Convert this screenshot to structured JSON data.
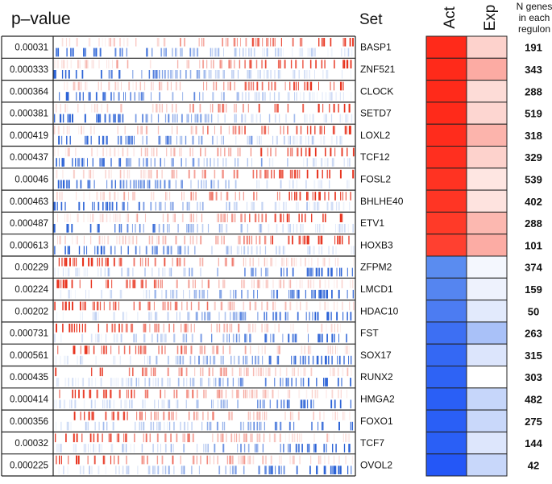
{
  "chart_data": {
    "type": "heatmap",
    "headers": {
      "pvalue": "p–value",
      "set": "Set",
      "act": "Act",
      "exp": "Exp",
      "ngenes": [
        "N genes",
        "in each",
        "regulon"
      ]
    },
    "rows": [
      {
        "pvalue": "0.00031",
        "set": "BASP1",
        "act_color": "#ff2a1a",
        "exp_color": "#fdd2cc",
        "n": "191"
      },
      {
        "pvalue": "0.000333",
        "set": "ZNF521",
        "act_color": "#ff2a1a",
        "exp_color": "#fcaba3",
        "n": "343"
      },
      {
        "pvalue": "0.000364",
        "set": "CLOCK",
        "act_color": "#ff2a1a",
        "exp_color": "#fddcd7",
        "n": "288"
      },
      {
        "pvalue": "0.000381",
        "set": "SETD7",
        "act_color": "#ff2a1a",
        "exp_color": "#fdd6d1",
        "n": "519"
      },
      {
        "pvalue": "0.000419",
        "set": "LOXL2",
        "act_color": "#ff2c1c",
        "exp_color": "#fcb4ac",
        "n": "318"
      },
      {
        "pvalue": "0.000437",
        "set": "TCF12",
        "act_color": "#ff2f1f",
        "exp_color": "#fdd2cc",
        "n": "329"
      },
      {
        "pvalue": "0.00046",
        "set": "FOSL2",
        "act_color": "#ff3322",
        "exp_color": "#fee6e2",
        "n": "539"
      },
      {
        "pvalue": "0.000463",
        "set": "BHLHE40",
        "act_color": "#ff3524",
        "exp_color": "#fee3df",
        "n": "402"
      },
      {
        "pvalue": "0.000487",
        "set": "ETV1",
        "act_color": "#ff3a28",
        "exp_color": "#fcb8b0",
        "n": "288"
      },
      {
        "pvalue": "0.000613",
        "set": "HOXB3",
        "act_color": "#ff4030",
        "exp_color": "#fcaca4",
        "n": "101"
      },
      {
        "pvalue": "0.00229",
        "set": "ZFPM2",
        "act_color": "#5a8cf0",
        "exp_color": "#f4f7fe",
        "n": "374"
      },
      {
        "pvalue": "0.00224",
        "set": "LMCD1",
        "act_color": "#5585f0",
        "exp_color": "#eef2fd",
        "n": "159"
      },
      {
        "pvalue": "0.00202",
        "set": "HDAC10",
        "act_color": "#4c7cf2",
        "exp_color": "#e2eafc",
        "n": "50"
      },
      {
        "pvalue": "0.000731",
        "set": "FST",
        "act_color": "#3d6ff3",
        "exp_color": "#a9c1f8",
        "n": "263"
      },
      {
        "pvalue": "0.000561",
        "set": "SOX17",
        "act_color": "#3468f4",
        "exp_color": "#dce5fc",
        "n": "315"
      },
      {
        "pvalue": "0.000435",
        "set": "RUNX2",
        "act_color": "#2e63f5",
        "exp_color": "#ffffff",
        "n": "303"
      },
      {
        "pvalue": "0.000414",
        "set": "HMGA2",
        "act_color": "#2a5ff6",
        "exp_color": "#c6d6fa",
        "n": "482"
      },
      {
        "pvalue": "0.000356",
        "set": "FOXO1",
        "act_color": "#2a5ff6",
        "exp_color": "#c9d8fa",
        "n": "275"
      },
      {
        "pvalue": "0.00032",
        "set": "TCF7",
        "act_color": "#2a5ff6",
        "exp_color": "#dde6fc",
        "n": "144"
      },
      {
        "pvalue": "0.000225",
        "set": "OVOL2",
        "act_color": "#2457f7",
        "exp_color": "#c8d7fa",
        "n": "42"
      }
    ],
    "barcode_colors": {
      "red": "#e8341f",
      "blue": "#2c63d6"
    }
  }
}
